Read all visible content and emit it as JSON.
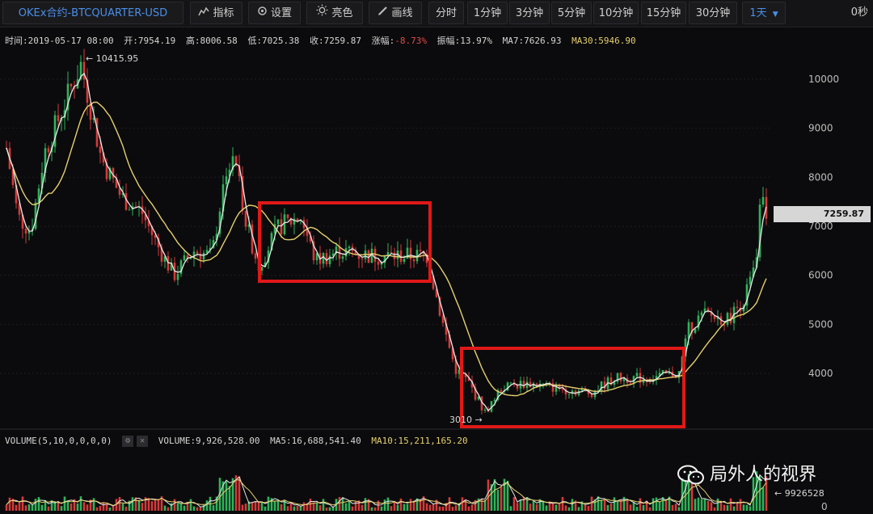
{
  "toolbar": {
    "symbol": "OKEx合约-BTCQUARTER-USD",
    "indicators": "指标",
    "settings": "设置",
    "theme": "亮色",
    "draw": "画线",
    "intervals": [
      "分时",
      "1分钟",
      "3分钟",
      "5分钟",
      "10分钟",
      "15分钟",
      "30分钟"
    ],
    "selected_interval": "1天",
    "countdown": "0秒"
  },
  "info": {
    "time": "时间:2019-05-17 08:00",
    "open": "开:7954.19",
    "high": "高:8006.58",
    "low": "低:7025.38",
    "close": "收:7259.87",
    "change_label": "涨幅:",
    "change_value": "-8.73%",
    "amplitude": "振幅:13.97%",
    "ma7": "MA7:7626.93",
    "ma30": "MA30:5946.90"
  },
  "price_axis": {
    "ticks": [
      "10000",
      "9000",
      "8000",
      "7000",
      "6000",
      "5000",
      "4000"
    ],
    "current_price": "7259.87"
  },
  "annotations": {
    "high_label": "← 10415.95",
    "low_label": "3010 →"
  },
  "volume": {
    "indicator": "VOLUME(5,10,0,0,0,0)",
    "volume": "VOLUME:9,926,528.00",
    "ma5": "MA5:16,688,541.40",
    "ma10": "MA10:15,211,165.20",
    "last_label": "← 9926528",
    "zero_tick": "0"
  },
  "watermark": {
    "text": "局外人的视界"
  },
  "colors": {
    "up": "#2fb35a",
    "down": "#d63a3a",
    "ma7": "#e8e8e8",
    "ma30": "#e6d06e",
    "highlight_box": "#e01818"
  }
}
